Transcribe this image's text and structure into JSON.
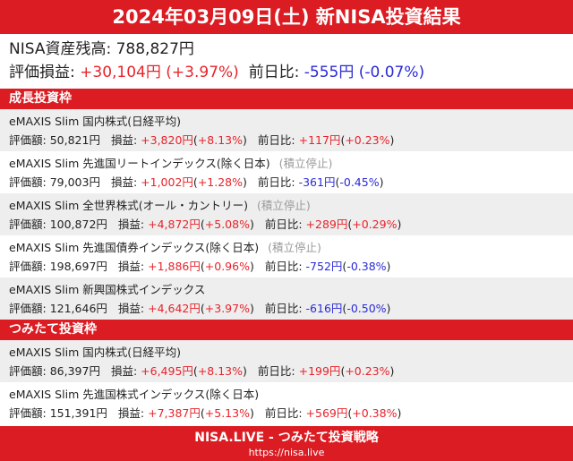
{
  "title": "2024年03月09日(土) 新NISA投資結果",
  "summary": {
    "total_label": "NISA資産残高:",
    "total": "788,827円",
    "pl_label": "評価損益:",
    "pl": "+30,104円",
    "pl_pct": "(+3.97%)",
    "day_label": "前日比:",
    "day": "-555円",
    "day_pct": "(-0.07%)"
  },
  "labels": {
    "value": "評価額:",
    "pl": "損益:",
    "day": "前日比:"
  },
  "colors": {
    "accent": "#dc1c23",
    "positive": "#e8232a",
    "negative": "#2a2ad8"
  },
  "sections": [
    {
      "title": "成長投資枠",
      "funds": [
        {
          "name": "eMAXIS Slim 国内株式(日経平均)",
          "note": "",
          "value": "50,821円",
          "pl": "+3,820円",
          "pl_pct": "+8.13%",
          "day": "+117円",
          "day_pct": "+0.23%"
        },
        {
          "name": "eMAXIS Slim 先進国リートインデックス(除く日本)",
          "note": "(積立停止)",
          "value": "79,003円",
          "pl": "+1,002円",
          "pl_pct": "+1.28%",
          "day": "-361円",
          "day_pct": "-0.45%"
        },
        {
          "name": "eMAXIS Slim 全世界株式(オール・カントリー)",
          "note": "(積立停止)",
          "value": "100,872円",
          "pl": "+4,872円",
          "pl_pct": "+5.08%",
          "day": "+289円",
          "day_pct": "+0.29%"
        },
        {
          "name": "eMAXIS Slim 先進国債券インデックス(除く日本)",
          "note": "(積立停止)",
          "value": "198,697円",
          "pl": "+1,886円",
          "pl_pct": "+0.96%",
          "day": "-752円",
          "day_pct": "-0.38%"
        },
        {
          "name": "eMAXIS Slim 新興国株式インデックス",
          "note": "",
          "value": "121,646円",
          "pl": "+4,642円",
          "pl_pct": "+3.97%",
          "day": "-616円",
          "day_pct": "-0.50%"
        }
      ]
    },
    {
      "title": "つみたて投資枠",
      "funds": [
        {
          "name": "eMAXIS Slim 国内株式(日経平均)",
          "note": "",
          "value": "86,397円",
          "pl": "+6,495円",
          "pl_pct": "+8.13%",
          "day": "+199円",
          "day_pct": "+0.23%"
        },
        {
          "name": "eMAXIS Slim 先進国株式インデックス(除く日本)",
          "note": "",
          "value": "151,391円",
          "pl": "+7,387円",
          "pl_pct": "+5.13%",
          "day": "+569円",
          "day_pct": "+0.38%"
        }
      ]
    }
  ],
  "footer": {
    "brand": "NISA.LIVE - つみたて投資戦略",
    "url": "https://nisa.live"
  }
}
